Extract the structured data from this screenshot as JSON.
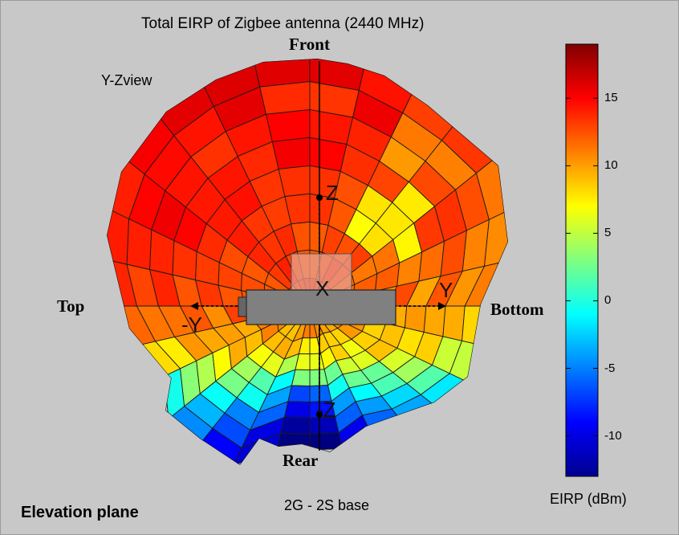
{
  "chart_data": {
    "type": "heatmap",
    "title": "Total EIRP of Zigbee antenna (2440 MHz)",
    "subtitle": "2G - 2S base",
    "view_label": "Y-Zview",
    "plane_label": "Elevation plane",
    "direction_labels": {
      "front": "Front",
      "rear": "Rear",
      "top": "Top",
      "bottom": "Bottom"
    },
    "axis_labels": {
      "z": "Z",
      "neg_z": "-Z",
      "y": "Y",
      "neg_y": "-Y",
      "x": "X"
    },
    "colorbar": {
      "label": "EIRP (dBm)",
      "range": [
        -13,
        19
      ],
      "ticks": [
        -10,
        -5,
        0,
        5,
        10,
        15
      ],
      "colormap": "jet"
    }
  }
}
